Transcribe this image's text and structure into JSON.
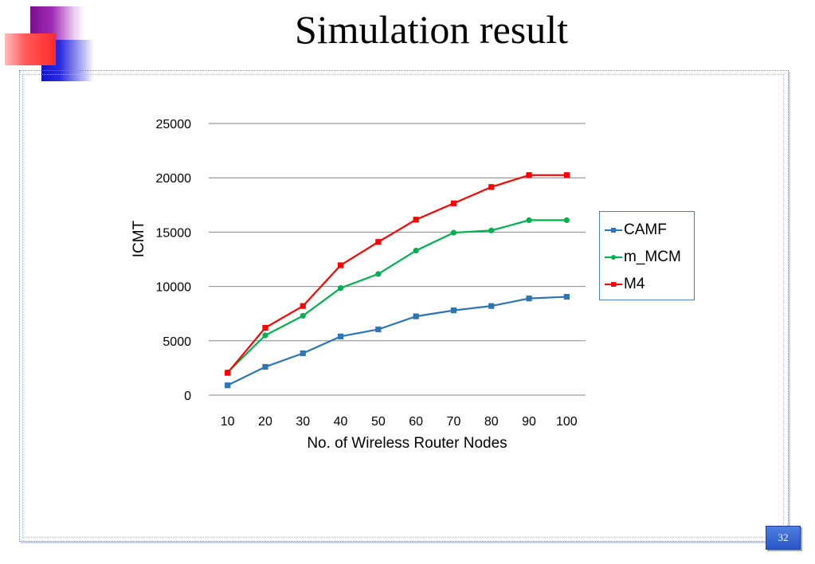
{
  "slide": {
    "title": "Simulation result",
    "page_number": "32"
  },
  "chart_data": {
    "type": "line",
    "title": "",
    "xlabel": "No. of Wireless Router Nodes",
    "ylabel": "ICMT",
    "categories": [
      "10",
      "20",
      "30",
      "40",
      "50",
      "60",
      "70",
      "80",
      "90",
      "100"
    ],
    "ylim": [
      0,
      25000
    ],
    "yticks": [
      0,
      5000,
      10000,
      15000,
      20000,
      25000
    ],
    "grid": true,
    "legend_position": "right",
    "series": [
      {
        "name": "CAMF",
        "color": "#2e75b6",
        "marker": "square",
        "values": [
          900,
          2600,
          3850,
          5400,
          6050,
          7250,
          7800,
          8200,
          8900,
          9050
        ]
      },
      {
        "name": "m_MCM",
        "color": "#00b050",
        "marker": "circle",
        "values": [
          2100,
          5500,
          7300,
          9850,
          11150,
          13300,
          14950,
          15150,
          16100,
          16100
        ]
      },
      {
        "name": "M4",
        "color": "#ff0000",
        "marker": "square",
        "values": [
          2050,
          6200,
          8200,
          11950,
          14100,
          16150,
          17650,
          19150,
          20250,
          20250
        ]
      }
    ]
  }
}
